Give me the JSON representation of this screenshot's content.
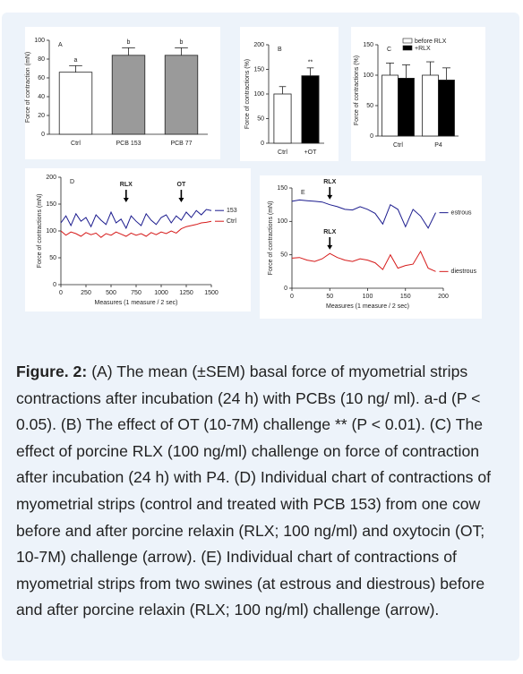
{
  "chart_data": [
    {
      "type": "bar",
      "panel_label": "A",
      "ylabel": "Force of contraction (mN)",
      "categories": [
        "Ctrl",
        "PCB 153",
        "PCB 77"
      ],
      "values": [
        66,
        84,
        84
      ],
      "errors": [
        7,
        8,
        8
      ],
      "colors": [
        "#ffffff",
        "#9a9a9a",
        "#9a9a9a"
      ],
      "annotations": [
        "a",
        "b",
        "b"
      ],
      "ylim": [
        0,
        100
      ],
      "yticks": [
        0,
        20,
        40,
        60,
        80,
        100
      ]
    },
    {
      "type": "bar",
      "panel_label": "B",
      "ylabel": "Force of contractions (%)",
      "categories": [
        "Ctrl",
        "+OT"
      ],
      "values": [
        100,
        137
      ],
      "errors": [
        15,
        16
      ],
      "colors": [
        "#ffffff",
        "#000000"
      ],
      "annotations": [
        null,
        "**"
      ],
      "ylim": [
        0,
        200
      ],
      "yticks": [
        0,
        50,
        100,
        150,
        200
      ]
    },
    {
      "type": "grouped-bar",
      "panel_label": "C",
      "ylabel": "Force of contractions (%)",
      "categories": [
        "Ctrl",
        "P4"
      ],
      "legend": "upper right",
      "series": [
        {
          "name": "before RLX",
          "color": "#ffffff",
          "values": [
            100,
            100
          ],
          "errors": [
            20,
            22
          ]
        },
        {
          "name": "+RLX",
          "color": "#000000",
          "values": [
            95,
            92
          ],
          "errors": [
            22,
            20
          ]
        }
      ],
      "ylim": [
        0,
        150
      ],
      "yticks": [
        0,
        50,
        100,
        150
      ]
    },
    {
      "type": "line",
      "panel_label": "D",
      "ylabel": "Force of contractions (mN)",
      "xlabel": "Measures (1 measure / 2 sec)",
      "legend": "right",
      "x": [
        0,
        50,
        100,
        150,
        200,
        250,
        300,
        350,
        400,
        450,
        500,
        550,
        600,
        650,
        700,
        750,
        800,
        850,
        900,
        950,
        1000,
        1050,
        1100,
        1150,
        1200,
        1250,
        1300,
        1350,
        1400,
        1450,
        1500
      ],
      "series": [
        {
          "name": "153",
          "color": "#1c1c8e",
          "values": [
            115,
            128,
            110,
            132,
            118,
            125,
            108,
            130,
            120,
            112,
            135,
            115,
            122,
            105,
            128,
            118,
            110,
            132,
            120,
            112,
            125,
            130,
            115,
            128,
            120,
            135,
            125,
            138,
            130,
            140,
            138
          ]
        },
        {
          "name": "Ctrl",
          "color": "#d61a1a",
          "values": [
            100,
            92,
            98,
            95,
            90,
            97,
            93,
            96,
            88,
            95,
            92,
            98,
            94,
            90,
            96,
            92,
            95,
            90,
            97,
            93,
            98,
            95,
            100,
            96,
            104,
            108,
            110,
            112,
            115,
            116,
            118
          ]
        }
      ],
      "annotations": [
        {
          "text": "RLX",
          "x": 650,
          "y": 150
        },
        {
          "text": "OT",
          "x": 1200,
          "y": 150
        }
      ],
      "xlim": [
        0,
        1500
      ],
      "xticks": [
        0,
        250,
        500,
        750,
        1000,
        1250,
        1500
      ],
      "ylim": [
        0,
        200
      ],
      "yticks": [
        0,
        50,
        100,
        150,
        200
      ]
    },
    {
      "type": "line",
      "panel_label": "E",
      "ylabel": "Force of contractions (mN)",
      "xlabel": "Measures (1 measure / 2 sec)",
      "legend": "right",
      "x": [
        0,
        10,
        20,
        30,
        40,
        50,
        60,
        70,
        80,
        90,
        100,
        110,
        120,
        130,
        140,
        150,
        160,
        170,
        180,
        190
      ],
      "series": [
        {
          "name": "estrous",
          "color": "#1c1c8e",
          "values": [
            130,
            132,
            131,
            130,
            129,
            125,
            122,
            118,
            117,
            122,
            118,
            112,
            96,
            125,
            118,
            92,
            118,
            108,
            90,
            113
          ]
        },
        {
          "name": "diestrous",
          "color": "#d61a1a",
          "values": [
            45,
            46,
            42,
            40,
            44,
            52,
            46,
            42,
            40,
            44,
            42,
            38,
            28,
            50,
            30,
            34,
            36,
            55,
            30,
            25
          ]
        }
      ],
      "annotations": [
        {
          "text": "RLX",
          "x": 50,
          "y": 130
        },
        {
          "text": "RLX",
          "x": 50,
          "y": 55
        }
      ],
      "xlim": [
        0,
        200
      ],
      "xticks": [
        0,
        50,
        100,
        150,
        200
      ],
      "ylim": [
        0,
        150
      ],
      "yticks": [
        0,
        50,
        100,
        150
      ]
    }
  ],
  "caption": {
    "label": "Figure. 2:",
    "text": "(A) The mean (±SEM) basal force of myometrial strips contractions after incubation (24 h) with PCBs (10 ng/ ml). a-d (P < 0.05). (B) The effect of OT (10-7M) challenge ** (P < 0.01). (C) The effect of porcine RLX (100 ng/ml) challenge on force of contraction after incubation (24 h) with P4. (D) Individual chart of contractions of myometrial strips (control and treated with PCB 153) from one cow before and after porcine relaxin (RLX; 100 ng/ml) and oxytocin (OT; 10-7M) challenge (arrow). (E) Individual chart of contractions of myometrial strips from two swines (at estrous and diestrous) before and after porcine relaxin (RLX; 100 ng/ml) challenge (arrow)."
  }
}
